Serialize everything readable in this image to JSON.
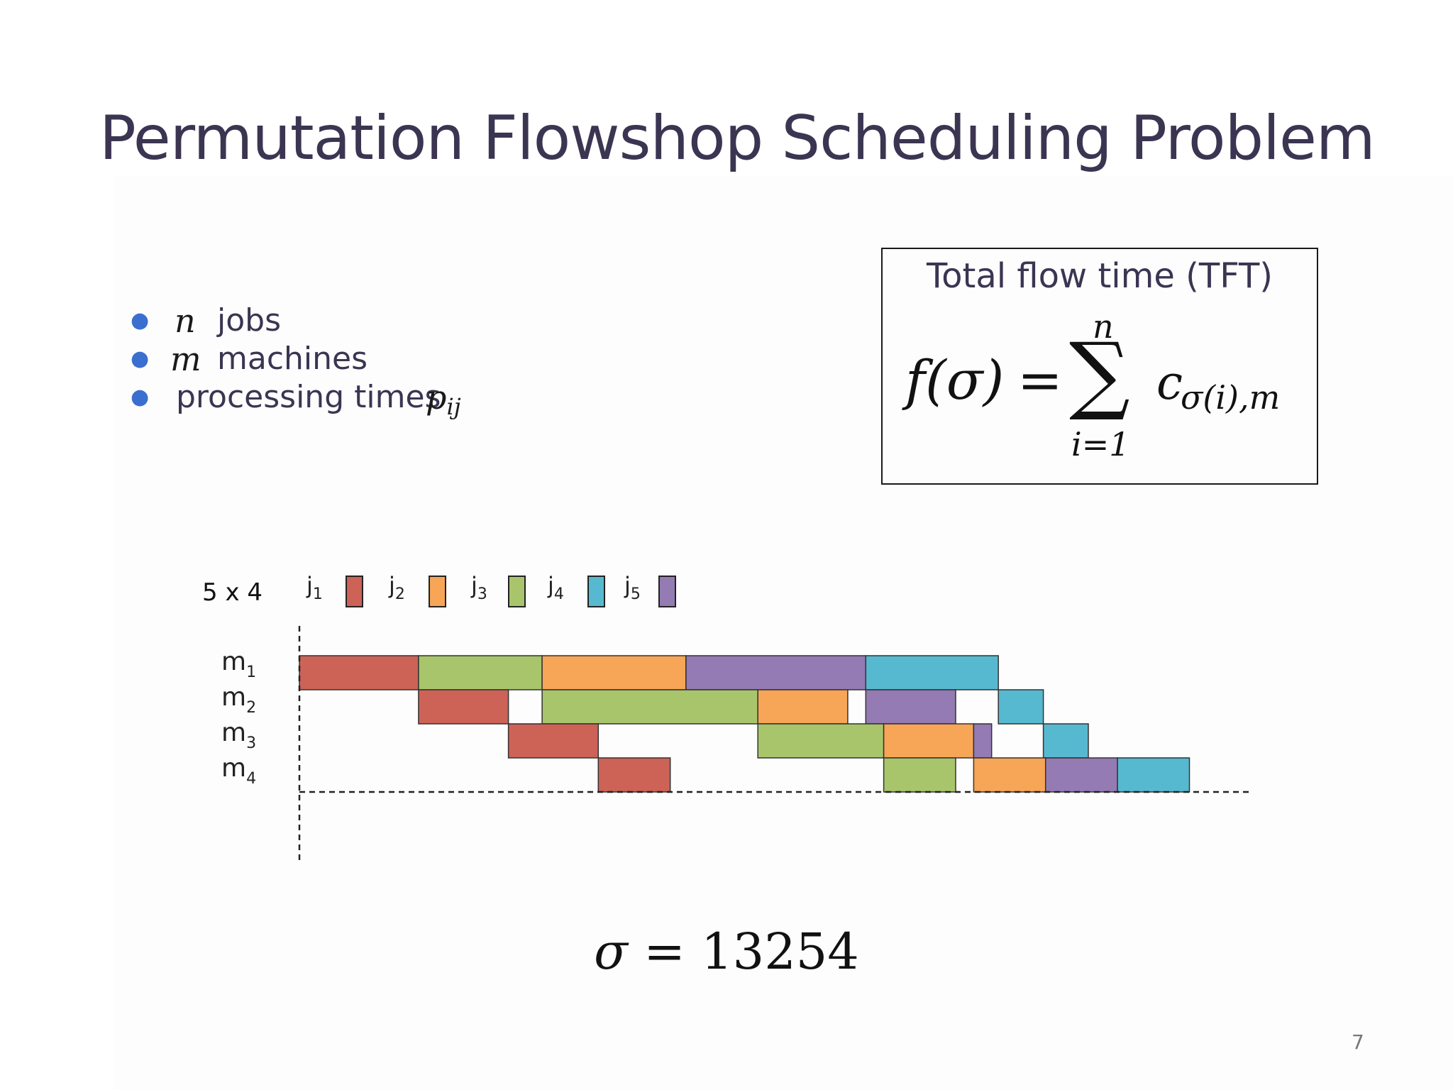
{
  "slide": {
    "title": "Permutation Flowshop Scheduling Problem",
    "page_number": "7"
  },
  "bullets": [
    {
      "var": "n",
      "text": "jobs"
    },
    {
      "var": "m",
      "text": "machines"
    },
    {
      "var": "",
      "text": "processing times",
      "trailing_var": "p",
      "trailing_sub": "ij"
    }
  ],
  "objective": {
    "title": "Total flow time (TFT)",
    "lhs": "f(σ)",
    "equals": "=",
    "sum_symbol": "∑",
    "upper": "n",
    "lower": "i=1",
    "term": "c",
    "term_sub": "σ(i),m"
  },
  "gantt": {
    "size_label": "5 x 4",
    "jobs": [
      {
        "label": "j",
        "sub": "1",
        "color": "#cd6257"
      },
      {
        "label": "j",
        "sub": "2",
        "color": "#f7a556"
      },
      {
        "label": "j",
        "sub": "3",
        "color": "#a8c56b"
      },
      {
        "label": "j",
        "sub": "4",
        "color": "#57b9d0"
      },
      {
        "label": "j",
        "sub": "5",
        "color": "#947bb3"
      }
    ],
    "machines": [
      {
        "label": "m",
        "sub": "1"
      },
      {
        "label": "m",
        "sub": "2"
      },
      {
        "label": "m",
        "sub": "3"
      },
      {
        "label": "m",
        "sub": "4"
      }
    ],
    "operations": [
      {
        "machine": 0,
        "job": 0,
        "start": 0,
        "end": 5.3
      },
      {
        "machine": 0,
        "job": 2,
        "start": 5.3,
        "end": 10.8
      },
      {
        "machine": 0,
        "job": 1,
        "start": 10.8,
        "end": 17.2
      },
      {
        "machine": 0,
        "job": 4,
        "start": 17.2,
        "end": 25.2
      },
      {
        "machine": 0,
        "job": 3,
        "start": 25.2,
        "end": 31.1
      },
      {
        "machine": 1,
        "job": 0,
        "start": 5.3,
        "end": 9.3
      },
      {
        "machine": 1,
        "job": 2,
        "start": 10.8,
        "end": 20.4
      },
      {
        "machine": 1,
        "job": 1,
        "start": 20.4,
        "end": 24.4
      },
      {
        "machine": 1,
        "job": 4,
        "start": 25.2,
        "end": 29.2
      },
      {
        "machine": 1,
        "job": 3,
        "start": 31.1,
        "end": 33.1
      },
      {
        "machine": 2,
        "job": 0,
        "start": 9.3,
        "end": 13.3
      },
      {
        "machine": 2,
        "job": 2,
        "start": 20.4,
        "end": 26.0
      },
      {
        "machine": 2,
        "job": 1,
        "start": 26.0,
        "end": 30.0
      },
      {
        "machine": 2,
        "job": 4,
        "start": 30.0,
        "end": 30.8
      },
      {
        "machine": 2,
        "job": 3,
        "start": 33.1,
        "end": 35.1
      },
      {
        "machine": 3,
        "job": 0,
        "start": 13.3,
        "end": 16.5
      },
      {
        "machine": 3,
        "job": 2,
        "start": 26.0,
        "end": 29.2
      },
      {
        "machine": 3,
        "job": 1,
        "start": 30.0,
        "end": 33.2
      },
      {
        "machine": 3,
        "job": 4,
        "start": 33.2,
        "end": 36.4
      },
      {
        "machine": 3,
        "job": 3,
        "start": 36.4,
        "end": 39.6
      }
    ],
    "axis_max": 42.3
  },
  "permutation": {
    "symbol": "σ",
    "equals": "=",
    "value": "13254"
  }
}
